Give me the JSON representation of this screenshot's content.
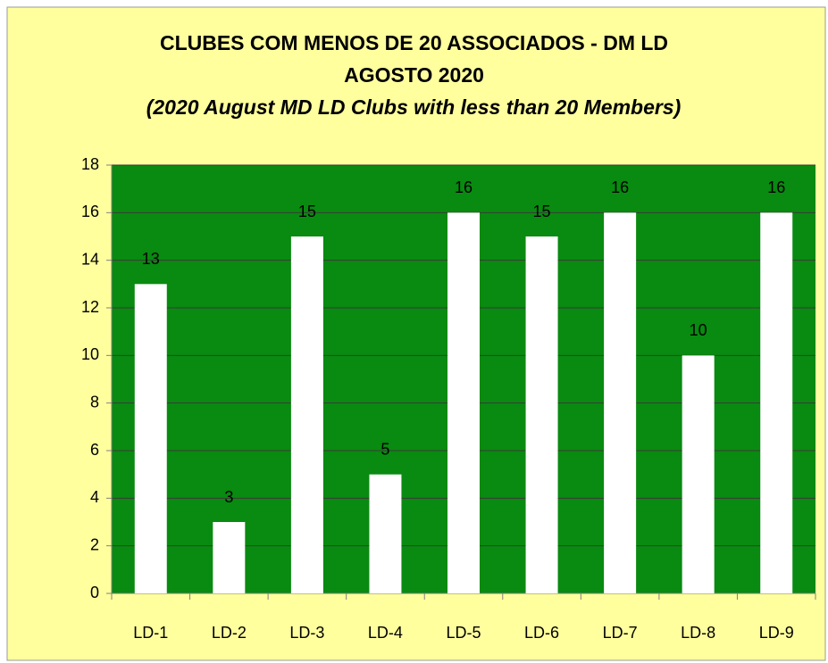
{
  "chart_data": {
    "type": "bar",
    "title": [
      "CLUBES COM MENOS DE 20 ASSOCIADOS - DM LD",
      "AGOSTO 2020"
    ],
    "subtitle": "(2020 August MD LD  Clubs with less than 20 Members)",
    "categories": [
      "LD-1",
      "LD-2",
      "LD-3",
      "LD-4",
      "LD-5",
      "LD-6",
      "LD-7",
      "LD-8",
      "LD-9"
    ],
    "values": [
      13,
      3,
      15,
      5,
      16,
      15,
      16,
      10,
      16
    ],
    "color": "#ffffff",
    "ylim": [
      0,
      18
    ],
    "yticks": [
      0,
      2,
      4,
      6,
      8,
      10,
      12,
      14,
      16,
      18
    ],
    "grid": true
  }
}
